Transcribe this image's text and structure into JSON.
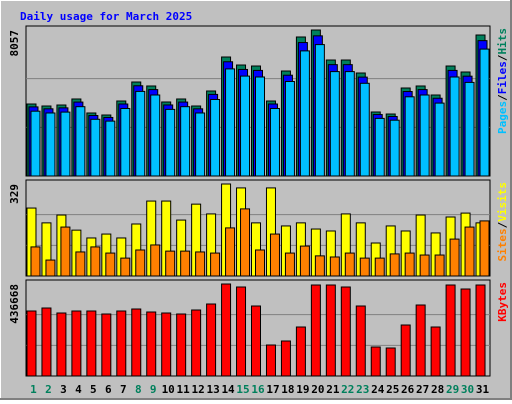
{
  "chart_data": [
    {
      "type": "bar",
      "title": "Daily usage for March 2025",
      "categories": [
        "1",
        "2",
        "3",
        "4",
        "5",
        "6",
        "7",
        "8",
        "9",
        "10",
        "11",
        "12",
        "13",
        "14",
        "15",
        "16",
        "17",
        "18",
        "19",
        "20",
        "21",
        "22",
        "23",
        "24",
        "25",
        "26",
        "27",
        "28",
        "29",
        "30",
        "31"
      ],
      "category_label_colors": [
        "#00805c",
        "#00805c",
        "#000000",
        "#000000",
        "#000000",
        "#000000",
        "#000000",
        "#00805c",
        "#00805c",
        "#000000",
        "#000000",
        "#000000",
        "#000000",
        "#000000",
        "#00805c",
        "#00805c",
        "#000000",
        "#000000",
        "#000000",
        "#000000",
        "#000000",
        "#00805c",
        "#00805c",
        "#000000",
        "#000000",
        "#000000",
        "#000000",
        "#000000",
        "#00805c",
        "#00805c",
        "#000000"
      ],
      "ylim": [
        0,
        8057
      ],
      "yticks": [
        8057
      ],
      "legend_separator": "/",
      "series": [
        {
          "name": "Hits",
          "color": "#00805c",
          "values": [
            3973,
            3863,
            3918,
            4250,
            3477,
            3366,
            4139,
            5187,
            4967,
            4084,
            4250,
            3863,
            4691,
            6567,
            6125,
            6070,
            4139,
            5794,
            7671,
            8057,
            6401,
            6401,
            5684,
            3532,
            3421,
            4856,
            4967,
            4470,
            6070,
            5739,
            7781
          ]
        },
        {
          "name": "Files",
          "color": "#0000ff",
          "values": [
            3814,
            3708,
            3761,
            4080,
            3338,
            3231,
            3973,
            4980,
            4768,
            3921,
            4080,
            3708,
            4503,
            6304,
            5880,
            5827,
            3973,
            5562,
            7364,
            7735,
            6145,
            6145,
            5457,
            3391,
            3284,
            4662,
            4768,
            4291,
            5827,
            5509,
            7470
          ]
        },
        {
          "name": "Pages",
          "color": "#00c0ff",
          "values": [
            3576,
            3477,
            3526,
            3825,
            3129,
            3029,
            3725,
            4668,
            4470,
            3676,
            3825,
            3477,
            4222,
            5910,
            5513,
            5463,
            3725,
            5215,
            6904,
            7251,
            5761,
            5761,
            5116,
            3179,
            3079,
            4370,
            4470,
            4023,
            5463,
            5165,
            7003
          ]
        }
      ]
    },
    {
      "type": "bar",
      "ylim": [
        0,
        329
      ],
      "yticks": [
        329
      ],
      "legend_separator": "/",
      "series": [
        {
          "name": "Visits",
          "color": "#ffff00",
          "values": [
            243,
            190,
            218,
            164,
            136,
            150,
            136,
            186,
            268,
            268,
            200,
            257,
            222,
            329,
            315,
            190,
            315,
            179,
            190,
            168,
            161,
            222,
            190,
            118,
            179,
            161,
            218,
            154,
            211,
            225,
            190
          ]
        },
        {
          "name": "Sites",
          "color": "#ff8000",
          "values": [
            104,
            57,
            175,
            86,
            104,
            82,
            64,
            93,
            111,
            89,
            89,
            86,
            82,
            172,
            240,
            93,
            150,
            82,
            107,
            72,
            68,
            82,
            64,
            64,
            79,
            82,
            75,
            75,
            132,
            175,
            197
          ]
        }
      ]
    },
    {
      "type": "bar",
      "ylim": [
        0,
        436668
      ],
      "yticks": [
        436668
      ],
      "series": [
        {
          "name": "KBytes",
          "color": "#ff0000",
          "values": [
            308516,
            322755,
            299023,
            308516,
            308516,
            294277,
            308516,
            318009,
            303770,
            299023,
            294277,
            313262,
            341738,
            436668,
            422429,
            332246,
            147138,
            166123,
            232573,
            431921,
            431921,
            422429,
            332246,
            137645,
            132898,
            242066,
            336992,
            232573,
            431921,
            412932,
            431921
          ]
        }
      ]
    }
  ]
}
